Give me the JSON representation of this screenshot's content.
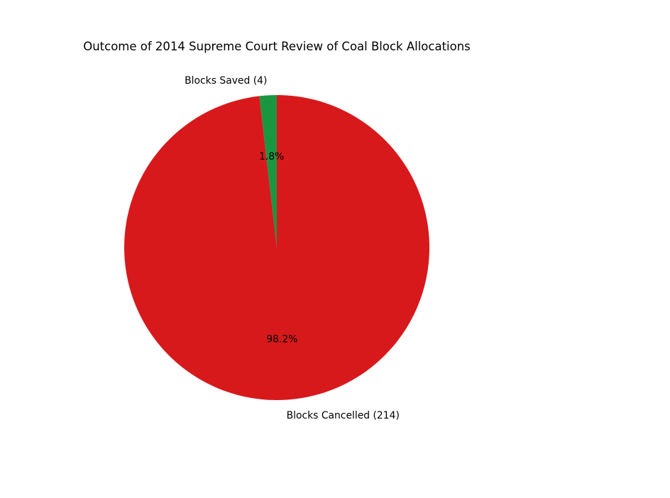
{
  "chart_data": {
    "type": "pie",
    "title": "Outcome of 2014 Supreme Court Review of Coal Block Allocations",
    "slices": [
      {
        "label": "Blocks Saved (4)",
        "value": 4,
        "pct_label": "1.8%",
        "color": "#1a9641"
      },
      {
        "label": "Blocks Cancelled (214)",
        "value": 214,
        "pct_label": "98.2%",
        "color": "#d7191c"
      }
    ],
    "start_angle": 90,
    "direction": "counterclockwise",
    "legend": false,
    "grid": false,
    "background_color": "#ffffff",
    "text_color": "#000000"
  }
}
